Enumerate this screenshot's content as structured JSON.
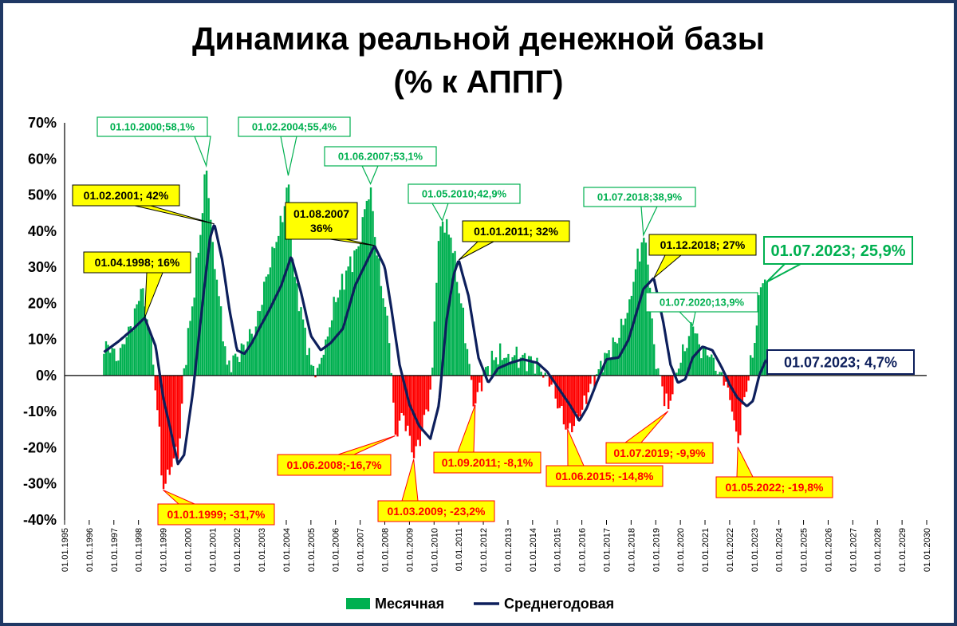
{
  "chart_data": {
    "type": "bar",
    "title": "Динамика реальной денежной базы",
    "subtitle": "(% к АППГ)",
    "ylim": [
      -40,
      70
    ],
    "yticks": [
      -40,
      -30,
      -20,
      -10,
      0,
      10,
      20,
      30,
      40,
      50,
      60,
      70
    ],
    "ytick_labels": [
      "-40%",
      "-30%",
      "-20%",
      "-10%",
      "0%",
      "10%",
      "20%",
      "30%",
      "40%",
      "50%",
      "60%",
      "70%"
    ],
    "xlim": [
      1995,
      2030
    ],
    "xtick_labels": [
      "01.01.1995",
      "01.01.1996",
      "01.01.1997",
      "01.01.1998",
      "01.01.1999",
      "01.01.2000",
      "01.01.2001",
      "01.01.2002",
      "01.01.2003",
      "01.01.2004",
      "01.01.2005",
      "01.01.2006",
      "01.01.2007",
      "01.01.2008",
      "01.01.2009",
      "01.01.2010",
      "01.01.2011",
      "01.01.2012",
      "01.01.2013",
      "01.01.2014",
      "01.01.2015",
      "01.01.2016",
      "01.01.2017",
      "01.01.2018",
      "01.01.2019",
      "01.01.2020",
      "01.01.2021",
      "01.01.2022",
      "01.01.2023",
      "01.01.2024",
      "01.01.2025",
      "01.01.2026",
      "01.01.2027",
      "01.01.2028",
      "01.01.2029",
      "01.01.2030"
    ],
    "grid": false,
    "legend_position": "bottom",
    "colors": {
      "positive": "#00b050",
      "negative": "#ff0000",
      "line": "#0d1f5c"
    },
    "series": [
      {
        "name": "Месячная",
        "type": "bar",
        "knots": [
          [
            1996.6,
            6
          ],
          [
            1996.8,
            9
          ],
          [
            1997.1,
            4
          ],
          [
            1997.4,
            8
          ],
          [
            1997.7,
            14
          ],
          [
            1998.0,
            20
          ],
          [
            1998.1,
            24
          ],
          [
            1998.4,
            15
          ],
          [
            1998.6,
            3
          ],
          [
            1998.75,
            -8
          ],
          [
            1999.0,
            -31.7
          ],
          [
            1999.3,
            -27
          ],
          [
            1999.7,
            -17
          ],
          [
            1999.85,
            2
          ],
          [
            2000.2,
            20
          ],
          [
            2000.6,
            45
          ],
          [
            2000.75,
            58.1
          ],
          [
            2001.0,
            38
          ],
          [
            2001.3,
            20
          ],
          [
            2001.6,
            3
          ],
          [
            2002.0,
            5
          ],
          [
            2002.4,
            9
          ],
          [
            2002.8,
            14
          ],
          [
            2003.2,
            28
          ],
          [
            2003.6,
            37
          ],
          [
            2003.9,
            45
          ],
          [
            2004.08,
            55.4
          ],
          [
            2004.3,
            28
          ],
          [
            2004.7,
            15
          ],
          [
            2005.0,
            3
          ],
          [
            2005.3,
            2
          ],
          [
            2005.6,
            10
          ],
          [
            2006.0,
            20
          ],
          [
            2006.5,
            30
          ],
          [
            2007.0,
            36
          ],
          [
            2007.2,
            47
          ],
          [
            2007.42,
            53.1
          ],
          [
            2007.7,
            32
          ],
          [
            2008.0,
            20
          ],
          [
            2008.2,
            8
          ],
          [
            2008.3,
            -3
          ],
          [
            2008.42,
            -16.7
          ],
          [
            2008.7,
            -10
          ],
          [
            2009.0,
            -16
          ],
          [
            2009.17,
            -23.2
          ],
          [
            2009.5,
            -16
          ],
          [
            2009.9,
            -3
          ],
          [
            2010.15,
            36
          ],
          [
            2010.33,
            42.9
          ],
          [
            2010.7,
            38
          ],
          [
            2011.1,
            20
          ],
          [
            2011.4,
            5
          ],
          [
            2011.55,
            -3
          ],
          [
            2011.67,
            -8.1
          ],
          [
            2012.0,
            1
          ],
          [
            2012.5,
            5
          ],
          [
            2013.0,
            6
          ],
          [
            2013.5,
            5
          ],
          [
            2014.0,
            4
          ],
          [
            2014.5,
            1
          ],
          [
            2014.8,
            -3
          ],
          [
            2015.1,
            -9
          ],
          [
            2015.42,
            -14.8
          ],
          [
            2015.9,
            -12
          ],
          [
            2016.3,
            -4
          ],
          [
            2016.7,
            2
          ],
          [
            2017.0,
            6
          ],
          [
            2017.5,
            10
          ],
          [
            2017.9,
            20
          ],
          [
            2018.2,
            30
          ],
          [
            2018.5,
            38.9
          ],
          [
            2018.7,
            30
          ],
          [
            2018.9,
            10
          ],
          [
            2019.1,
            2
          ],
          [
            2019.3,
            -4
          ],
          [
            2019.5,
            -9.9
          ],
          [
            2019.8,
            1
          ],
          [
            2020.2,
            7
          ],
          [
            2020.5,
            13.9
          ],
          [
            2020.8,
            8
          ],
          [
            2021.2,
            5
          ],
          [
            2021.6,
            1
          ],
          [
            2021.9,
            -2
          ],
          [
            2022.1,
            -10
          ],
          [
            2022.33,
            -19.8
          ],
          [
            2022.6,
            -6
          ],
          [
            2023.0,
            8
          ],
          [
            2023.3,
            26.5
          ],
          [
            2023.5,
            25.9
          ]
        ]
      },
      {
        "name": "Среднегодовая",
        "type": "line",
        "knots": [
          [
            1996.6,
            6.5
          ],
          [
            1997.2,
            9.5
          ],
          [
            1997.8,
            13
          ],
          [
            1998.25,
            16
          ],
          [
            1998.7,
            8
          ],
          [
            1999.0,
            -6
          ],
          [
            1999.3,
            -15
          ],
          [
            1999.6,
            -24.5
          ],
          [
            1999.85,
            -22
          ],
          [
            2000.2,
            -5
          ],
          [
            2000.6,
            20
          ],
          [
            2000.9,
            38
          ],
          [
            2001.08,
            42
          ],
          [
            2001.4,
            32
          ],
          [
            2001.7,
            18
          ],
          [
            2002.0,
            7
          ],
          [
            2002.3,
            6
          ],
          [
            2002.6,
            9
          ],
          [
            2002.9,
            13
          ],
          [
            2003.3,
            18
          ],
          [
            2003.8,
            25
          ],
          [
            2004.2,
            33
          ],
          [
            2004.6,
            23
          ],
          [
            2005.0,
            11
          ],
          [
            2005.4,
            7
          ],
          [
            2005.8,
            9
          ],
          [
            2006.3,
            13
          ],
          [
            2006.8,
            25
          ],
          [
            2007.58,
            36
          ],
          [
            2008.0,
            30
          ],
          [
            2008.3,
            17
          ],
          [
            2008.6,
            3
          ],
          [
            2009.0,
            -8
          ],
          [
            2009.4,
            -14
          ],
          [
            2009.85,
            -17.5
          ],
          [
            2010.2,
            -8
          ],
          [
            2010.5,
            15
          ],
          [
            2010.8,
            28
          ],
          [
            2011.0,
            32
          ],
          [
            2011.4,
            22
          ],
          [
            2011.8,
            5
          ],
          [
            2012.2,
            -2
          ],
          [
            2012.6,
            2
          ],
          [
            2013.1,
            3.5
          ],
          [
            2013.6,
            4.5
          ],
          [
            2014.2,
            3.5
          ],
          [
            2014.6,
            1
          ],
          [
            2015.0,
            -3
          ],
          [
            2015.5,
            -8
          ],
          [
            2015.9,
            -12.5
          ],
          [
            2016.2,
            -9
          ],
          [
            2016.6,
            -2
          ],
          [
            2017.0,
            4.5
          ],
          [
            2017.5,
            5
          ],
          [
            2017.9,
            10
          ],
          [
            2018.5,
            24
          ],
          [
            2018.92,
            27
          ],
          [
            2019.3,
            15
          ],
          [
            2019.6,
            3
          ],
          [
            2019.9,
            -2
          ],
          [
            2020.2,
            -1
          ],
          [
            2020.5,
            5
          ],
          [
            2020.9,
            8
          ],
          [
            2021.3,
            7
          ],
          [
            2021.7,
            2
          ],
          [
            2022.0,
            -2.5
          ],
          [
            2022.3,
            -6
          ],
          [
            2022.7,
            -8.5
          ],
          [
            2022.95,
            -7
          ],
          [
            2023.2,
            0
          ],
          [
            2023.5,
            4.7
          ]
        ]
      }
    ],
    "annotations": [
      {
        "label": "01.10.2000;58,1%",
        "x": 2000.75,
        "y": 58.1,
        "style": "green"
      },
      {
        "label": "01.02.2004;55,4%",
        "x": 2004.08,
        "y": 55.4,
        "style": "green"
      },
      {
        "label": "01.06.2007;53,1%",
        "x": 2007.42,
        "y": 53.1,
        "style": "green"
      },
      {
        "label": "01.05.2010;42,9%",
        "x": 2010.33,
        "y": 42.9,
        "style": "green"
      },
      {
        "label": "01.07.2018;38,9%",
        "x": 2018.5,
        "y": 38.9,
        "style": "green"
      },
      {
        "label": "01.07.2020;13,9%",
        "x": 2020.5,
        "y": 13.9,
        "style": "green"
      },
      {
        "label": "01.07.2023; 25,9%",
        "x": 2023.5,
        "y": 25.9,
        "style": "green-big"
      },
      {
        "label": "01.02.2001; 42%",
        "x": 2001.08,
        "y": 42,
        "style": "yellow"
      },
      {
        "label": "01.04.1998; 16%",
        "x": 1998.25,
        "y": 16,
        "style": "yellow"
      },
      {
        "label": "01.08.2007\n36%",
        "x": 2007.58,
        "y": 36,
        "style": "yellow"
      },
      {
        "label": "01.01.2011; 32%",
        "x": 2011.0,
        "y": 32,
        "style": "yellow"
      },
      {
        "label": "01.12.2018; 27%",
        "x": 2018.92,
        "y": 27,
        "style": "yellow"
      },
      {
        "label": "01.01.1999; -31,7%",
        "x": 1999.0,
        "y": -31.7,
        "style": "red"
      },
      {
        "label": "01.06.2008;-16,7%",
        "x": 2008.42,
        "y": -16.7,
        "style": "red"
      },
      {
        "label": "01.03.2009; -23,2%",
        "x": 2009.17,
        "y": -23.2,
        "style": "red"
      },
      {
        "label": "01.09.2011; -8,1%",
        "x": 2011.67,
        "y": -8.1,
        "style": "red"
      },
      {
        "label": "01.06.2015; -14,8%",
        "x": 2015.42,
        "y": -14.8,
        "style": "red"
      },
      {
        "label": "01.07.2019; -9,9%",
        "x": 2019.5,
        "y": -9.9,
        "style": "red"
      },
      {
        "label": "01.05.2022; -19,8%",
        "x": 2022.33,
        "y": -19.8,
        "style": "red"
      },
      {
        "label": "01.07.2023; 4,7%",
        "x": 2023.5,
        "y": 4.7,
        "style": "navy"
      }
    ]
  }
}
